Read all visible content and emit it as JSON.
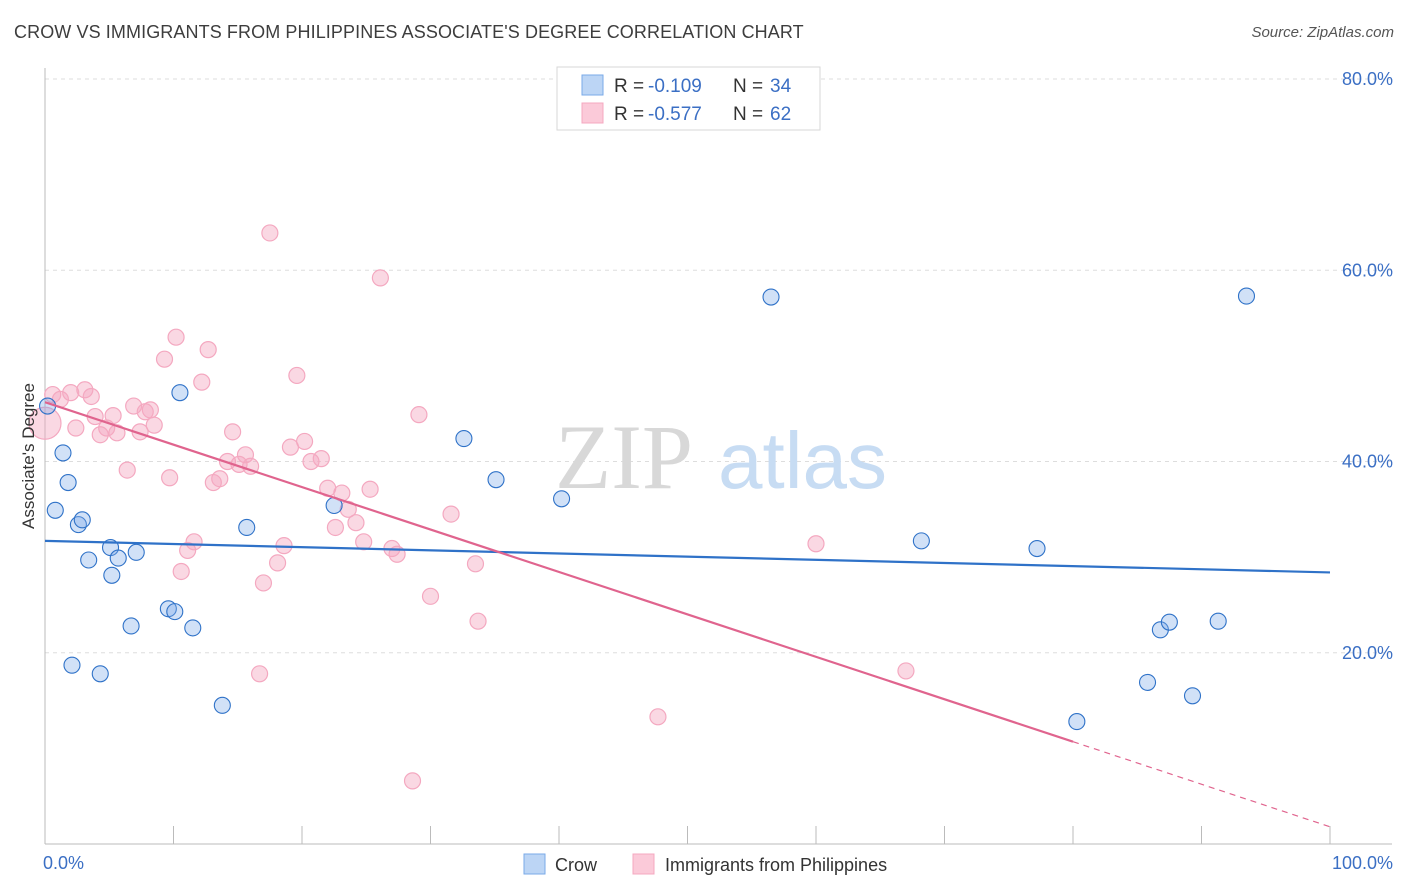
{
  "header": {
    "title": "CROW VS IMMIGRANTS FROM PHILIPPINES ASSOCIATE'S DEGREE CORRELATION CHART",
    "source": "Source: ZipAtlas.com"
  },
  "watermark": {
    "zip": "ZIP",
    "atlas": "atlas"
  },
  "legend_top": {
    "r_label": "R =",
    "n_label": "N =",
    "rows": [
      {
        "r": "-0.109",
        "n": "34"
      },
      {
        "r": "-0.577",
        "n": "62"
      }
    ]
  },
  "chart_data": {
    "type": "scatter",
    "title": "CROW VS IMMIGRANTS FROM PHILIPPINES ASSOCIATE'S DEGREE CORRELATION CHART",
    "xlabel": "",
    "ylabel": "Associate's Degree",
    "xlim": [
      0,
      100
    ],
    "ylim": [
      0,
      80
    ],
    "x_tick_labels": [
      "0.0%",
      "100.0%"
    ],
    "y_ticks": [
      20,
      40,
      60,
      80
    ],
    "y_tick_labels": [
      "20.0%",
      "40.0%",
      "60.0%",
      "80.0%"
    ],
    "grid": true,
    "legend_position": "top-center",
    "colors": {
      "crow": "#7aaae8",
      "crow_line": "#2f72c8",
      "philippines": "#f4a8c0",
      "philippines_line": "#e0648e",
      "tick_text": "#3b6fc4"
    },
    "series": [
      {
        "name": "Crow",
        "r": -0.109,
        "n": 34,
        "trend": {
          "x": [
            0,
            100
          ],
          "y": [
            31.7,
            28.4
          ]
        },
        "points": [
          [
            0.2,
            45.8
          ],
          [
            0.8,
            34.9
          ],
          [
            1.4,
            40.9
          ],
          [
            1.8,
            37.8
          ],
          [
            2.1,
            18.7
          ],
          [
            2.6,
            33.4
          ],
          [
            2.9,
            33.9
          ],
          [
            3.4,
            29.7
          ],
          [
            4.3,
            17.8
          ],
          [
            5.1,
            31.0
          ],
          [
            5.2,
            28.1
          ],
          [
            5.7,
            29.9
          ],
          [
            6.7,
            22.8
          ],
          [
            7.1,
            30.5
          ],
          [
            9.6,
            24.6
          ],
          [
            10.1,
            24.3
          ],
          [
            10.5,
            47.2
          ],
          [
            11.5,
            22.6
          ],
          [
            13.8,
            14.5
          ],
          [
            15.7,
            33.1
          ],
          [
            22.5,
            35.4
          ],
          [
            32.6,
            42.4
          ],
          [
            35.1,
            38.1
          ],
          [
            40.2,
            36.1
          ],
          [
            56.5,
            57.2
          ],
          [
            68.2,
            31.7
          ],
          [
            77.2,
            30.9
          ],
          [
            80.3,
            12.8
          ],
          [
            85.8,
            16.9
          ],
          [
            86.8,
            22.4
          ],
          [
            87.5,
            23.2
          ],
          [
            89.3,
            15.5
          ],
          [
            91.3,
            23.3
          ],
          [
            93.5,
            57.3
          ]
        ]
      },
      {
        "name": "Immigrants from Philippines",
        "r": -0.577,
        "n": 62,
        "trend": {
          "x": [
            0,
            80.0
          ],
          "y": [
            46.2,
            10.7
          ]
        },
        "trend_dashed": {
          "x": [
            80.0,
            100
          ],
          "y": [
            10.7,
            1.8
          ]
        },
        "points": [
          [
            0.0,
            44.0
          ],
          [
            0.6,
            47.0
          ],
          [
            1.2,
            46.5
          ],
          [
            2.0,
            47.2
          ],
          [
            2.4,
            43.5
          ],
          [
            3.1,
            47.5
          ],
          [
            3.6,
            46.8
          ],
          [
            3.9,
            44.7
          ],
          [
            4.3,
            42.8
          ],
          [
            4.8,
            43.5
          ],
          [
            5.3,
            44.8
          ],
          [
            5.6,
            43.0
          ],
          [
            6.4,
            39.1
          ],
          [
            6.9,
            45.8
          ],
          [
            7.4,
            43.1
          ],
          [
            7.8,
            45.2
          ],
          [
            8.2,
            45.4
          ],
          [
            8.5,
            43.8
          ],
          [
            9.3,
            50.7
          ],
          [
            9.7,
            38.3
          ],
          [
            10.2,
            53.0
          ],
          [
            10.6,
            28.5
          ],
          [
            11.1,
            30.7
          ],
          [
            11.6,
            31.6
          ],
          [
            12.2,
            48.3
          ],
          [
            12.7,
            51.7
          ],
          [
            13.1,
            37.8
          ],
          [
            13.6,
            38.2
          ],
          [
            14.2,
            40.0
          ],
          [
            14.6,
            43.1
          ],
          [
            15.1,
            39.7
          ],
          [
            15.6,
            40.7
          ],
          [
            16.0,
            39.5
          ],
          [
            16.7,
            17.8
          ],
          [
            17.0,
            27.3
          ],
          [
            17.5,
            63.9
          ],
          [
            18.1,
            29.4
          ],
          [
            18.6,
            31.2
          ],
          [
            19.1,
            41.5
          ],
          [
            19.6,
            49.0
          ],
          [
            20.2,
            42.1
          ],
          [
            20.7,
            40.0
          ],
          [
            21.5,
            40.3
          ],
          [
            22.0,
            37.2
          ],
          [
            22.6,
            33.1
          ],
          [
            23.1,
            36.7
          ],
          [
            23.6,
            35.0
          ],
          [
            24.2,
            33.6
          ],
          [
            24.8,
            31.6
          ],
          [
            25.3,
            37.1
          ],
          [
            26.1,
            59.2
          ],
          [
            27.0,
            30.9
          ],
          [
            27.4,
            30.3
          ],
          [
            28.6,
            6.6
          ],
          [
            29.1,
            44.9
          ],
          [
            30.0,
            25.9
          ],
          [
            31.6,
            34.5
          ],
          [
            33.5,
            29.3
          ],
          [
            33.7,
            23.3
          ],
          [
            47.7,
            13.3
          ],
          [
            60.0,
            31.4
          ],
          [
            67.0,
            18.1
          ]
        ]
      }
    ]
  },
  "legend_bottom": {
    "items": [
      {
        "label": "Crow"
      },
      {
        "label": "Immigrants from Philippines"
      }
    ]
  }
}
